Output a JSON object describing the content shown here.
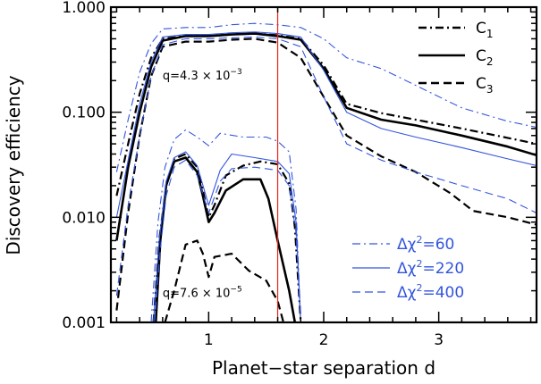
{
  "chart_data": {
    "type": "line",
    "xlabel": "Planet−star separation d",
    "ylabel": "Discovery efficiency",
    "xlim": [
      0.15,
      3.85
    ],
    "ylim": [
      0.001,
      1.0
    ],
    "yscale": "log",
    "x_ticks": [
      {
        "value": 1,
        "label": "1"
      },
      {
        "value": 2,
        "label": "2"
      },
      {
        "value": 3,
        "label": "3"
      }
    ],
    "y_ticks": [
      {
        "value": 0.001,
        "label": "0.001"
      },
      {
        "value": 0.01,
        "label": "0.010"
      },
      {
        "value": 0.1,
        "label": "0.100"
      },
      {
        "value": 1.0,
        "label": "1.000"
      }
    ],
    "vertical_line": {
      "x": 1.6,
      "color": "#e8231d"
    },
    "legend_black": [
      {
        "label": "C",
        "sub": "1",
        "style": "dashdot"
      },
      {
        "label": "C",
        "sub": "2",
        "style": "solid"
      },
      {
        "label": "C",
        "sub": "3",
        "style": "dashed"
      }
    ],
    "legend_blue": [
      {
        "label": "Δχ",
        "sup": "2",
        "value": "=60",
        "style": "dashdot"
      },
      {
        "label": "Δχ",
        "sup": "2",
        "value": "=220",
        "style": "solid"
      },
      {
        "label": "Δχ",
        "sup": "2",
        "value": "=400",
        "style": "dashed"
      }
    ],
    "annotations": [
      {
        "text": "q=4.3 × 10",
        "exp": "−3",
        "x": 0.6,
        "y": 0.205
      },
      {
        "text": "q=7.6 × 10",
        "exp": "−5",
        "x": 0.6,
        "y": 0.00175
      }
    ],
    "colors": {
      "black": "#000000",
      "blue": "#3355dd",
      "red": "#e8231d"
    },
    "series": [
      {
        "group": "high-q",
        "color": "black",
        "style": "dashdot",
        "width": 2.2,
        "points": [
          [
            0.2,
            0.016
          ],
          [
            0.3,
            0.05
          ],
          [
            0.4,
            0.15
          ],
          [
            0.5,
            0.33
          ],
          [
            0.6,
            0.5
          ],
          [
            0.8,
            0.53
          ],
          [
            1.0,
            0.53
          ],
          [
            1.2,
            0.55
          ],
          [
            1.4,
            0.56
          ],
          [
            1.6,
            0.54
          ],
          [
            1.8,
            0.5
          ],
          [
            2.0,
            0.28
          ],
          [
            2.2,
            0.12
          ],
          [
            2.5,
            0.098
          ],
          [
            2.8,
            0.085
          ],
          [
            3.2,
            0.07
          ],
          [
            3.6,
            0.057
          ],
          [
            3.85,
            0.05
          ]
        ]
      },
      {
        "group": "high-q",
        "color": "black",
        "style": "solid",
        "width": 2.6,
        "points": [
          [
            0.2,
            0.006
          ],
          [
            0.3,
            0.03
          ],
          [
            0.4,
            0.1
          ],
          [
            0.5,
            0.27
          ],
          [
            0.6,
            0.48
          ],
          [
            0.8,
            0.53
          ],
          [
            1.0,
            0.53
          ],
          [
            1.2,
            0.55
          ],
          [
            1.4,
            0.56
          ],
          [
            1.6,
            0.53
          ],
          [
            1.8,
            0.49
          ],
          [
            2.0,
            0.26
          ],
          [
            2.2,
            0.11
          ],
          [
            2.5,
            0.085
          ],
          [
            2.8,
            0.075
          ],
          [
            3.2,
            0.06
          ],
          [
            3.6,
            0.047
          ],
          [
            3.85,
            0.039
          ]
        ]
      },
      {
        "group": "high-q",
        "color": "black",
        "style": "dashed",
        "width": 2.2,
        "points": [
          [
            0.2,
            0.0013
          ],
          [
            0.3,
            0.011
          ],
          [
            0.4,
            0.06
          ],
          [
            0.5,
            0.22
          ],
          [
            0.6,
            0.42
          ],
          [
            0.8,
            0.47
          ],
          [
            1.0,
            0.47
          ],
          [
            1.2,
            0.49
          ],
          [
            1.4,
            0.5
          ],
          [
            1.6,
            0.46
          ],
          [
            1.8,
            0.33
          ],
          [
            2.0,
            0.14
          ],
          [
            2.2,
            0.06
          ],
          [
            2.5,
            0.038
          ],
          [
            2.8,
            0.027
          ],
          [
            3.1,
            0.017
          ],
          [
            3.3,
            0.0115
          ],
          [
            3.6,
            0.01
          ],
          [
            3.85,
            0.0085
          ]
        ]
      },
      {
        "group": "high-q",
        "color": "blue",
        "style": "dashdot",
        "width": 1.1,
        "points": [
          [
            0.2,
            0.027
          ],
          [
            0.3,
            0.085
          ],
          [
            0.4,
            0.24
          ],
          [
            0.5,
            0.45
          ],
          [
            0.6,
            0.62
          ],
          [
            0.8,
            0.64
          ],
          [
            1.0,
            0.64
          ],
          [
            1.2,
            0.68
          ],
          [
            1.4,
            0.7
          ],
          [
            1.6,
            0.68
          ],
          [
            1.8,
            0.64
          ],
          [
            2.0,
            0.5
          ],
          [
            2.2,
            0.33
          ],
          [
            2.5,
            0.26
          ],
          [
            2.8,
            0.18
          ],
          [
            3.2,
            0.11
          ],
          [
            3.6,
            0.082
          ],
          [
            3.85,
            0.072
          ]
        ]
      },
      {
        "group": "high-q",
        "color": "blue",
        "style": "solid",
        "width": 1.1,
        "points": [
          [
            0.2,
            0.01
          ],
          [
            0.3,
            0.035
          ],
          [
            0.4,
            0.12
          ],
          [
            0.5,
            0.3
          ],
          [
            0.6,
            0.52
          ],
          [
            0.8,
            0.55
          ],
          [
            1.0,
            0.55
          ],
          [
            1.2,
            0.57
          ],
          [
            1.4,
            0.58
          ],
          [
            1.6,
            0.56
          ],
          [
            1.8,
            0.52
          ],
          [
            2.0,
            0.25
          ],
          [
            2.2,
            0.1
          ],
          [
            2.5,
            0.07
          ],
          [
            2.8,
            0.058
          ],
          [
            3.2,
            0.046
          ],
          [
            3.6,
            0.036
          ],
          [
            3.85,
            0.031
          ]
        ]
      },
      {
        "group": "high-q",
        "color": "blue",
        "style": "dashed",
        "width": 1.1,
        "points": [
          [
            0.2,
            0.0018
          ],
          [
            0.3,
            0.013
          ],
          [
            0.4,
            0.06
          ],
          [
            0.5,
            0.22
          ],
          [
            0.6,
            0.44
          ],
          [
            0.8,
            0.5
          ],
          [
            1.0,
            0.5
          ],
          [
            1.2,
            0.51
          ],
          [
            1.4,
            0.52
          ],
          [
            1.6,
            0.5
          ],
          [
            1.8,
            0.42
          ],
          [
            2.0,
            0.14
          ],
          [
            2.2,
            0.05
          ],
          [
            2.5,
            0.035
          ],
          [
            2.8,
            0.027
          ],
          [
            3.2,
            0.02
          ],
          [
            3.6,
            0.015
          ],
          [
            3.85,
            0.011
          ]
        ]
      },
      {
        "group": "low-q",
        "color": "black",
        "style": "dashdot",
        "width": 2.2,
        "points": [
          [
            0.52,
            0.001
          ],
          [
            0.57,
            0.006
          ],
          [
            0.63,
            0.02
          ],
          [
            0.7,
            0.036
          ],
          [
            0.8,
            0.04
          ],
          [
            0.9,
            0.03
          ],
          [
            0.95,
            0.018
          ],
          [
            1.0,
            0.01
          ],
          [
            1.05,
            0.013
          ],
          [
            1.15,
            0.025
          ],
          [
            1.3,
            0.031
          ],
          [
            1.45,
            0.034
          ],
          [
            1.6,
            0.032
          ],
          [
            1.7,
            0.021
          ],
          [
            1.75,
            0.008
          ],
          [
            1.8,
            0.001
          ]
        ]
      },
      {
        "group": "low-q",
        "color": "black",
        "style": "solid",
        "width": 2.6,
        "points": [
          [
            0.54,
            0.001
          ],
          [
            0.58,
            0.006
          ],
          [
            0.63,
            0.02
          ],
          [
            0.7,
            0.034
          ],
          [
            0.8,
            0.037
          ],
          [
            0.9,
            0.027
          ],
          [
            0.95,
            0.016
          ],
          [
            1.0,
            0.009
          ],
          [
            1.05,
            0.011
          ],
          [
            1.15,
            0.018
          ],
          [
            1.3,
            0.023
          ],
          [
            1.45,
            0.023
          ],
          [
            1.52,
            0.015
          ],
          [
            1.6,
            0.006
          ],
          [
            1.7,
            0.002
          ],
          [
            1.75,
            0.001
          ]
        ]
      },
      {
        "group": "low-q",
        "color": "black",
        "style": "dashed",
        "width": 2.2,
        "points": [
          [
            0.62,
            0.001
          ],
          [
            0.7,
            0.002
          ],
          [
            0.8,
            0.0055
          ],
          [
            0.9,
            0.006
          ],
          [
            0.95,
            0.0045
          ],
          [
            1.0,
            0.0027
          ],
          [
            1.05,
            0.0042
          ],
          [
            1.2,
            0.0045
          ],
          [
            1.35,
            0.0031
          ],
          [
            1.5,
            0.0025
          ],
          [
            1.6,
            0.0016
          ],
          [
            1.65,
            0.001
          ]
        ]
      },
      {
        "group": "low-q",
        "color": "blue",
        "style": "dashdot",
        "width": 1.1,
        "points": [
          [
            0.5,
            0.001
          ],
          [
            0.56,
            0.009
          ],
          [
            0.62,
            0.03
          ],
          [
            0.7,
            0.055
          ],
          [
            0.8,
            0.068
          ],
          [
            0.9,
            0.058
          ],
          [
            1.0,
            0.048
          ],
          [
            1.1,
            0.063
          ],
          [
            1.3,
            0.058
          ],
          [
            1.5,
            0.058
          ],
          [
            1.6,
            0.053
          ],
          [
            1.7,
            0.042
          ],
          [
            1.76,
            0.012
          ],
          [
            1.8,
            0.001
          ]
        ]
      },
      {
        "group": "low-q",
        "color": "blue",
        "style": "solid",
        "width": 1.1,
        "points": [
          [
            0.52,
            0.001
          ],
          [
            0.57,
            0.006
          ],
          [
            0.63,
            0.022
          ],
          [
            0.7,
            0.037
          ],
          [
            0.8,
            0.042
          ],
          [
            0.9,
            0.031
          ],
          [
            1.0,
            0.013
          ],
          [
            1.1,
            0.028
          ],
          [
            1.2,
            0.04
          ],
          [
            1.4,
            0.037
          ],
          [
            1.6,
            0.034
          ],
          [
            1.7,
            0.026
          ],
          [
            1.76,
            0.009
          ],
          [
            1.8,
            0.001
          ]
        ]
      },
      {
        "group": "low-q",
        "color": "blue",
        "style": "dashed",
        "width": 1.1,
        "points": [
          [
            0.53,
            0.001
          ],
          [
            0.58,
            0.005
          ],
          [
            0.63,
            0.016
          ],
          [
            0.7,
            0.03
          ],
          [
            0.8,
            0.035
          ],
          [
            0.9,
            0.025
          ],
          [
            1.0,
            0.011
          ],
          [
            1.1,
            0.022
          ],
          [
            1.2,
            0.029
          ],
          [
            1.4,
            0.03
          ],
          [
            1.6,
            0.028
          ],
          [
            1.7,
            0.02
          ],
          [
            1.76,
            0.007
          ],
          [
            1.8,
            0.001
          ]
        ]
      }
    ]
  }
}
